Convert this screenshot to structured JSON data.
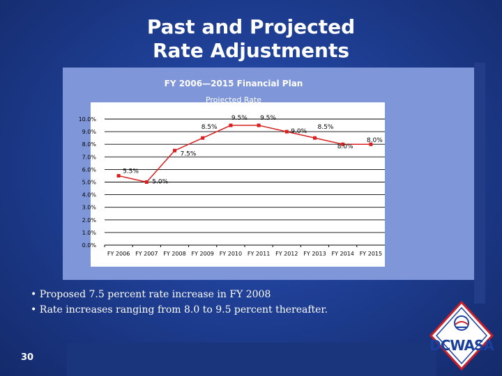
{
  "slide": {
    "title_line1": "Past and Projected",
    "title_line2": "Rate Adjustments",
    "page_number": "30",
    "bullets": [
      "• Proposed 7.5 percent rate increase in FY 2008",
      "• Rate increases ranging from 8.0 to 9.5 percent thereafter."
    ],
    "logo_text": "DCWASA",
    "colors": {
      "background": "#1f3f95",
      "chart_panel": "#7f96d9",
      "line": "#d81e1e",
      "text": "#ffffff"
    }
  },
  "chart_data": {
    "type": "line",
    "title": "FY 2006—2015 Financial Plan",
    "subtitle": "Projected Rate",
    "categories": [
      "FY 2006",
      "FY 2007",
      "FY 2008",
      "FY 2009",
      "FY 2010",
      "FY 2011",
      "FY 2012",
      "FY 2013",
      "FY 2014",
      "FY 2015"
    ],
    "series": [
      {
        "values": [
          5.5,
          5.0,
          7.5,
          8.5,
          9.5,
          9.5,
          9.0,
          8.5,
          8.0,
          8.0
        ],
        "labels": [
          "5.5%",
          "5.0%",
          "7.5%",
          "8.5%",
          "9.5%",
          "9.5%",
          "9.0%",
          "8.5%",
          "8.0%",
          "8.0%"
        ]
      }
    ],
    "ylim": [
      0,
      10
    ],
    "yticks": [
      "0.0%",
      "1.0%",
      "2.0%",
      "3.0%",
      "4.0%",
      "5.0%",
      "6.0%",
      "7.0%",
      "8.0%",
      "9.0%",
      "10.0%"
    ],
    "grid": "horizontal",
    "legend": "none"
  }
}
